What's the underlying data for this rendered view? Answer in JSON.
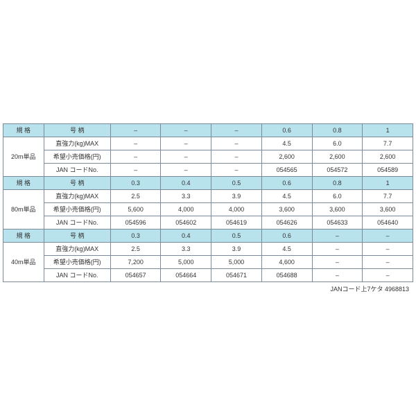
{
  "colors": {
    "header_bg": "#b8e2ec",
    "border": "#7a8a9a",
    "page_bg": "#ffffff",
    "text": "#333333"
  },
  "typography": {
    "fontsize": 9
  },
  "labels": {
    "spec": "規 格",
    "model": "号 柄",
    "strength": "直強力(kg)MAX",
    "price": "希望小売価格(円)",
    "jan": "JAN コードNo."
  },
  "sections": [
    {
      "spec": "20m単品",
      "model": [
        "–",
        "–",
        "–",
        "0.6",
        "0.8",
        "1"
      ],
      "strength": [
        "–",
        "–",
        "–",
        "4.5",
        "6.0",
        "7.7"
      ],
      "price": [
        "–",
        "–",
        "–",
        "2,600",
        "2,600",
        "2,600"
      ],
      "jan": [
        "–",
        "–",
        "–",
        "054565",
        "054572",
        "054589"
      ]
    },
    {
      "spec": "80m単品",
      "model": [
        "0.3",
        "0.4",
        "0.5",
        "0.6",
        "0.8",
        "1"
      ],
      "strength": [
        "2.5",
        "3.3",
        "3.9",
        "4.5",
        "6.0",
        "7.7"
      ],
      "price": [
        "5,600",
        "4,000",
        "4,000",
        "3,600",
        "3,600",
        "3,600"
      ],
      "jan": [
        "054596",
        "054602",
        "054619",
        "054626",
        "054633",
        "054640"
      ]
    },
    {
      "spec": "40m単品",
      "model": [
        "0.3",
        "0.4",
        "0.5",
        "0.6",
        "–",
        "–"
      ],
      "strength": [
        "2.5",
        "3.3",
        "3.9",
        "4.5",
        "–",
        "–"
      ],
      "price": [
        "7,200",
        "5,000",
        "5,000",
        "4,600",
        "–",
        "–"
      ],
      "jan": [
        "054657",
        "054664",
        "054671",
        "054688",
        "–",
        "–"
      ]
    }
  ],
  "footnote": "JANコード上7ケタ 4968813"
}
